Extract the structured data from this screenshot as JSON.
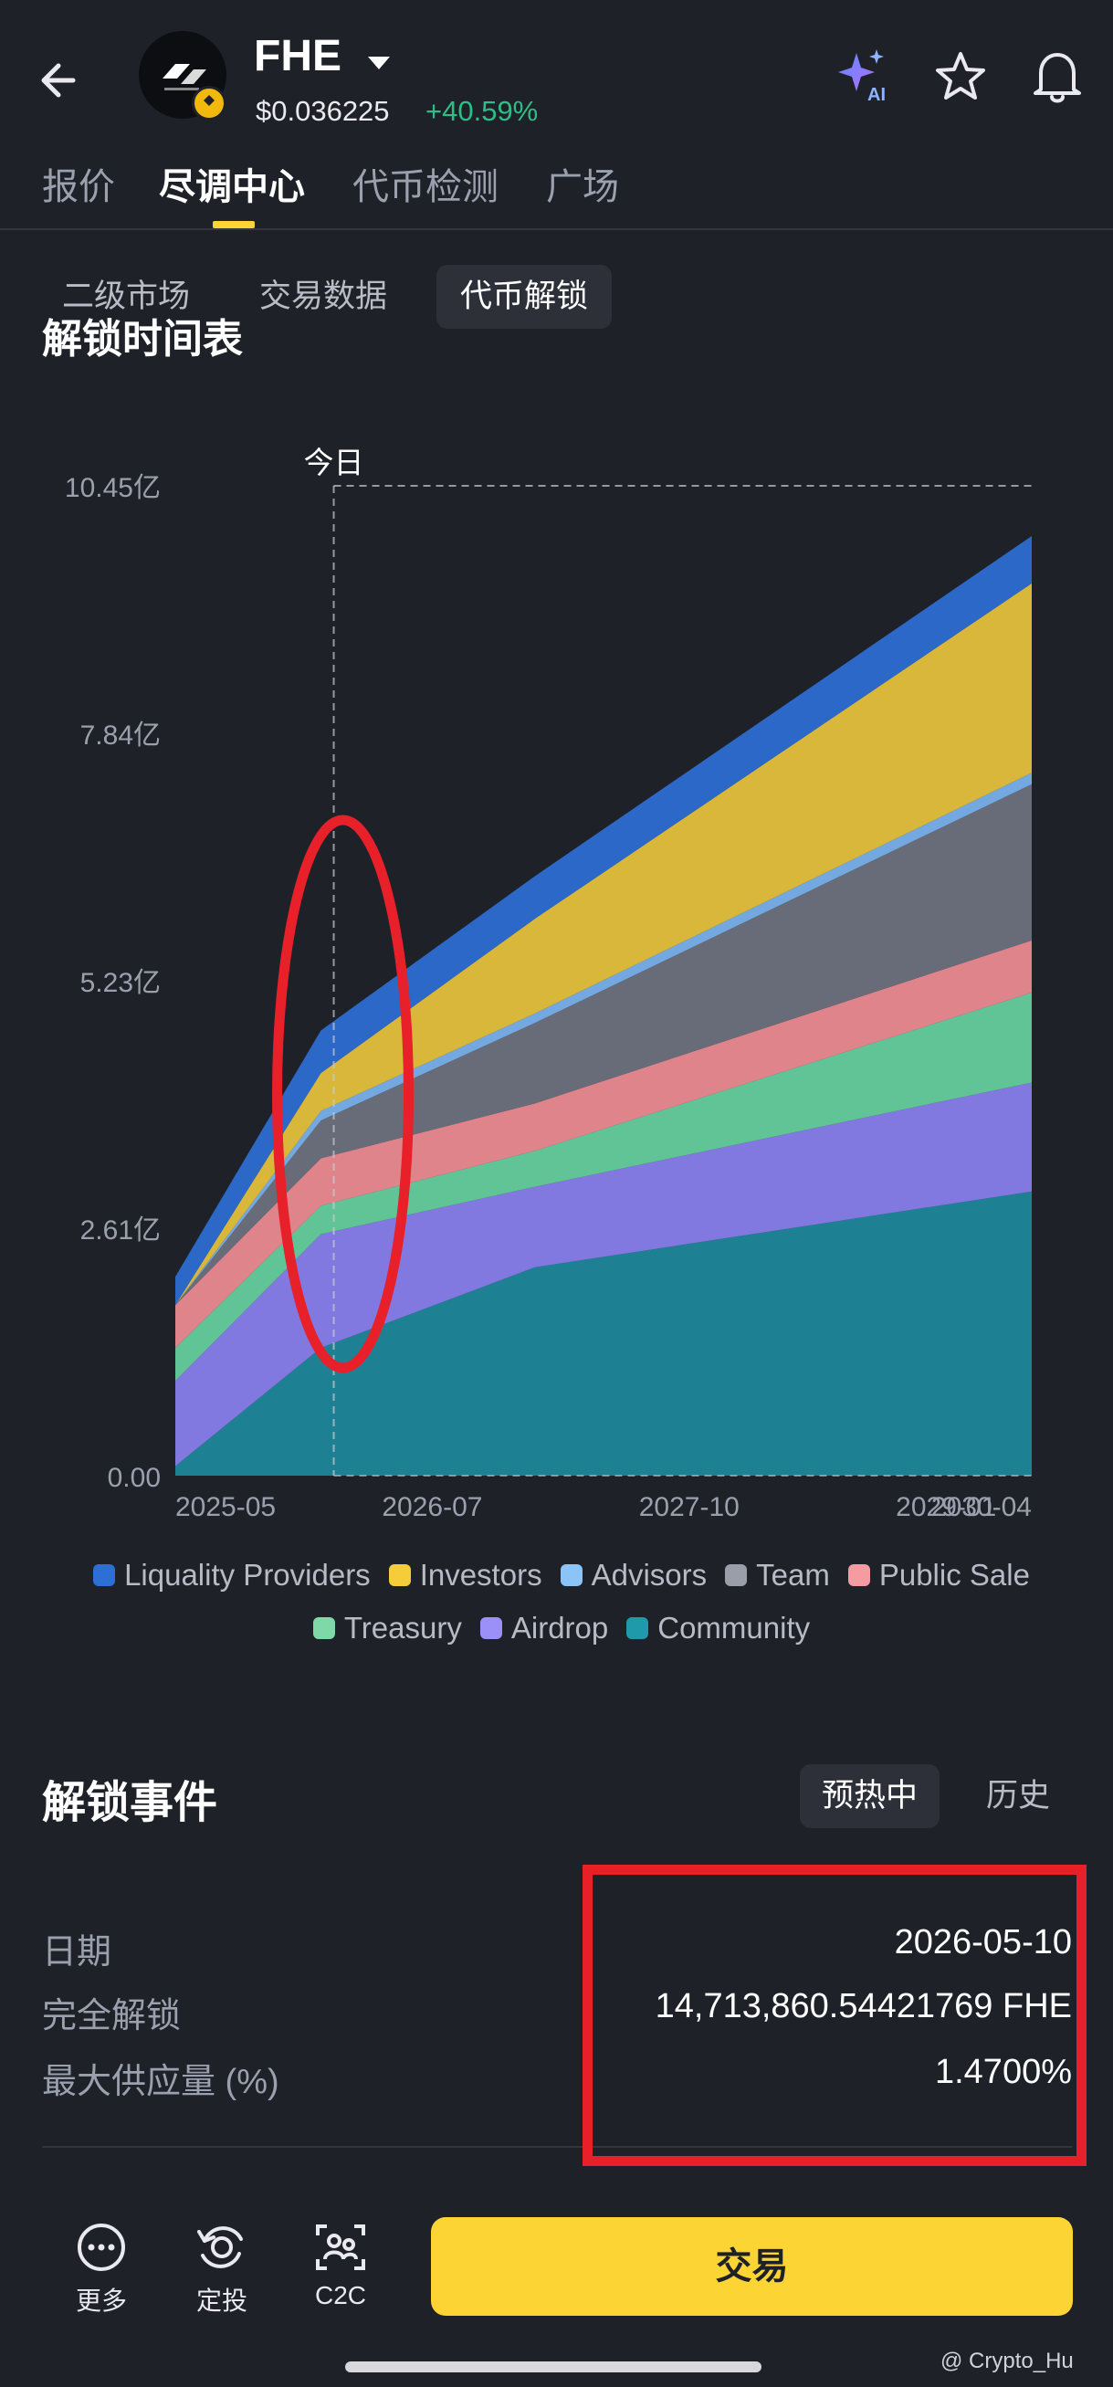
{
  "header": {
    "symbol": "FHE",
    "price": "$0.036225",
    "change": "+40.59%",
    "ai_label": "AI"
  },
  "tabs": [
    {
      "label": "报价",
      "active": false
    },
    {
      "label": "尽调中心",
      "active": true
    },
    {
      "label": "代币检测",
      "active": false
    },
    {
      "label": "广场",
      "active": false
    }
  ],
  "subtabs": [
    {
      "label": "二级市场",
      "active": false
    },
    {
      "label": "交易数据",
      "active": false
    },
    {
      "label": "代币解锁",
      "active": true
    }
  ],
  "section_title": "解锁时间表",
  "chart_data": {
    "type": "area",
    "stacked": true,
    "x": [
      "2025-05",
      "2026-07",
      "2027-10",
      "2029-01",
      "2030-04"
    ],
    "y_ticks": [
      "0.00",
      "2.61亿",
      "5.23亿",
      "7.84亿",
      "10.45亿"
    ],
    "ylim": [
      0,
      10.45
    ],
    "today_marker": "今日",
    "today_x": "2026-05",
    "series": [
      {
        "name": "Community",
        "color": "#1d8a9c",
        "points": [
          [
            0,
            0.1
          ],
          [
            0.17,
            1.35
          ],
          [
            0.42,
            2.2
          ],
          [
            1,
            3.0
          ]
        ]
      },
      {
        "name": "Airdrop",
        "color": "#8a80f0",
        "points": [
          [
            0,
            0.9
          ],
          [
            0.17,
            1.2
          ],
          [
            0.42,
            0.85
          ],
          [
            1,
            1.15
          ]
        ]
      },
      {
        "name": "Treasury",
        "color": "#67d2a0",
        "points": [
          [
            0,
            0.35
          ],
          [
            0.17,
            0.3
          ],
          [
            0.42,
            0.38
          ],
          [
            1,
            0.95
          ]
        ]
      },
      {
        "name": "Public Sale",
        "color": "#f08d94",
        "points": [
          [
            0,
            0.45
          ],
          [
            0.17,
            0.5
          ],
          [
            0.42,
            0.5
          ],
          [
            1,
            0.55
          ]
        ]
      },
      {
        "name": "Team",
        "color": "#6f7380",
        "points": [
          [
            0,
            0.0
          ],
          [
            0.17,
            0.4
          ],
          [
            0.42,
            0.85
          ],
          [
            1,
            1.65
          ]
        ]
      },
      {
        "name": "Advisors",
        "color": "#7cb4f0",
        "points": [
          [
            0,
            0.0
          ],
          [
            0.17,
            0.1
          ],
          [
            0.42,
            0.1
          ],
          [
            1,
            0.12
          ]
        ]
      },
      {
        "name": "Investors",
        "color": "#e8c43c",
        "points": [
          [
            0,
            0.0
          ],
          [
            0.17,
            0.4
          ],
          [
            0.42,
            1.0
          ],
          [
            1,
            2.0
          ]
        ]
      },
      {
        "name": "Liquality Providers",
        "color": "#2e6fd6",
        "points": [
          [
            0,
            0.3
          ],
          [
            0.17,
            0.45
          ],
          [
            0.42,
            0.45
          ],
          [
            1,
            0.5
          ]
        ]
      }
    ],
    "legend": [
      [
        "Liquality Providers",
        "Investors",
        "Advisors",
        "Team",
        "Public Sale"
      ],
      [
        "Treasury",
        "Airdrop",
        "Community"
      ]
    ],
    "legend_colors": {
      "Liquality Providers": "#2e6fd6",
      "Investors": "#f5cc3a",
      "Advisors": "#8cc4f8",
      "Team": "#9a9ea8",
      "Public Sale": "#f59ca3",
      "Treasury": "#7fd8a8",
      "Airdrop": "#9a90f8",
      "Community": "#1f9aab"
    }
  },
  "events": {
    "title": "解锁事件",
    "filter_active": "预热中",
    "filter_other": "历史",
    "rows": [
      {
        "label": "日期",
        "value": "2026-05-10"
      },
      {
        "label": "完全解锁",
        "value": "14,713,860.54421769 FHE"
      },
      {
        "label": "最大供应量 (%)",
        "value": "1.4700%"
      }
    ]
  },
  "bottom": {
    "more": "更多",
    "dca": "定投",
    "c2c": "C2C",
    "trade": "交易"
  },
  "watermark": "@ Crypto_Hu"
}
